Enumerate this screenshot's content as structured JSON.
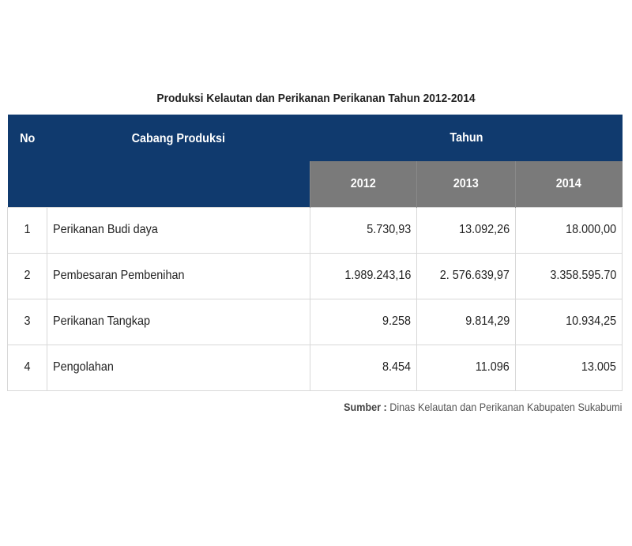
{
  "table": {
    "title": "Produksi Kelautan dan Perikanan Perikanan Tahun 2012-2014",
    "headers": {
      "no": "No",
      "cabang": "Cabang Produksi",
      "tahun": "Tahun",
      "years": [
        "2012",
        "2013",
        "2014"
      ]
    },
    "rows": [
      {
        "no": "1",
        "name": "Perikanan Budi daya",
        "values": [
          "5.730,93",
          "13.092,26",
          "18.000,00"
        ]
      },
      {
        "no": "2",
        "name": "Pembesaran Pembenihan",
        "values": [
          "1.989.243,16",
          "2. 576.639,97",
          "3.358.595.70"
        ]
      },
      {
        "no": "3",
        "name": "Perikanan Tangkap",
        "values": [
          "9.258",
          "9.814,29",
          "10.934,25"
        ]
      },
      {
        "no": "4",
        "name": "Pengolahan",
        "values": [
          "8.454",
          "11.096",
          "13.005"
        ]
      }
    ],
    "colors": {
      "header_blue": "#103a6e",
      "header_gray": "#7a7a7a"
    }
  },
  "source": {
    "label": "Sumber :",
    "text": "Dinas Kelautan dan Perikanan Kabupaten Sukabumi"
  }
}
